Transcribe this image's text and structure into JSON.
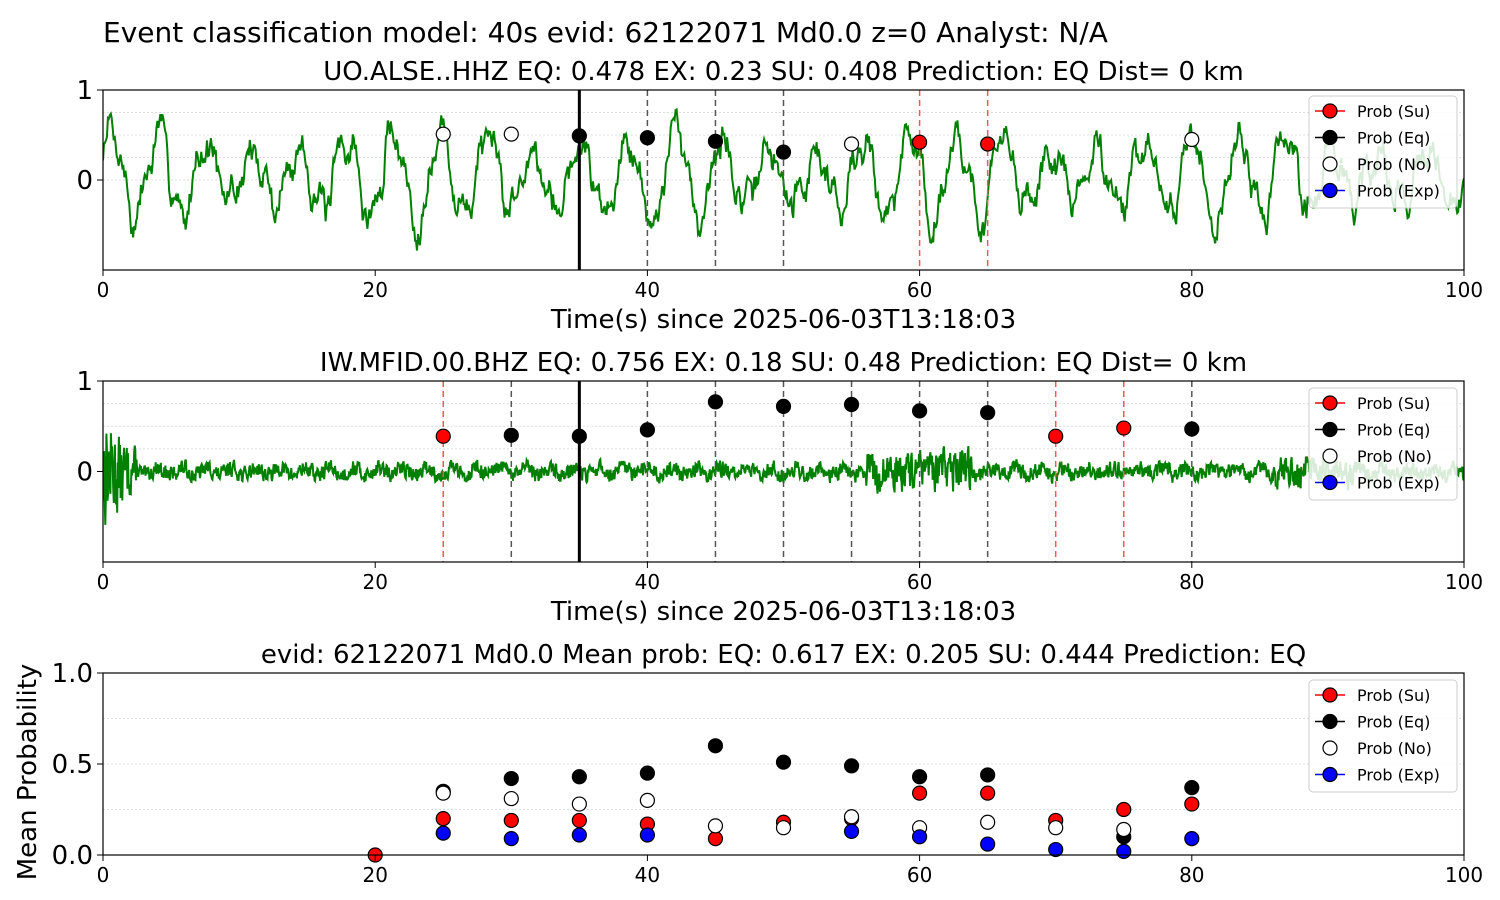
{
  "suptitle": "Event classification model: 40s evid: 62122071 Md0.0 z=0 Analyst: N/A",
  "colors": {
    "waveform": "#008000",
    "su": "#ff0000",
    "eq": "#000000",
    "no": "#ffffff",
    "exp": "#0000ff",
    "eq_window_line": "#555555",
    "su_window_line": "#ff5555",
    "grid": "#dddddd"
  },
  "legend": [
    "Prob (Su)",
    "Prob (Eq)",
    "Prob (No)",
    "Prob (Exp)"
  ],
  "chart_data": [
    {
      "type": "line",
      "title": "UO.ALSE..HHZ   EQ: 0.478  EX: 0.23  SU: 0.408   Prediction: EQ    Dist= 0 km",
      "xlabel": "Time(s) since 2025-06-03T13:18:03",
      "ylabel": "",
      "xlim": [
        0,
        100
      ],
      "ylim": [
        -1,
        1
      ],
      "xticks": [
        "0",
        "20",
        "40",
        "60",
        "80",
        "100"
      ],
      "yticks": [
        "0",
        "1"
      ],
      "waveform": {
        "kind": "long-period",
        "seed": 7
      },
      "origin_line": 35,
      "eq_window_lines": [
        40,
        45,
        50
      ],
      "su_window_lines": [
        60,
        65
      ],
      "series": [
        {
          "name": "Prob (Su)",
          "x": [
            60,
            65
          ],
          "y": [
            0.42,
            0.4
          ]
        },
        {
          "name": "Prob (Eq)",
          "x": [
            35,
            40,
            45,
            50
          ],
          "y": [
            0.49,
            0.47,
            0.43,
            0.31
          ]
        },
        {
          "name": "Prob (No)",
          "x": [
            25,
            30,
            55,
            80
          ],
          "y": [
            0.51,
            0.51,
            0.4,
            0.45
          ]
        },
        {
          "name": "Prob (Exp)",
          "x": [],
          "y": []
        }
      ]
    },
    {
      "type": "line",
      "title": "IW.MFID.00.BHZ   EQ: 0.756  EX: 0.18  SU: 0.48   Prediction: EQ    Dist= 0 km",
      "xlabel": "Time(s) since 2025-06-03T13:18:03",
      "ylabel": "",
      "xlim": [
        0,
        100
      ],
      "ylim": [
        -1,
        1
      ],
      "xticks": [
        "0",
        "20",
        "40",
        "60",
        "80",
        "100"
      ],
      "yticks": [
        "0",
        "1"
      ],
      "waveform": {
        "kind": "noisy",
        "seed": 13
      },
      "origin_line": 35,
      "eq_window_lines": [
        30,
        40,
        45,
        50,
        55,
        60,
        65,
        80
      ],
      "su_window_lines": [
        25,
        70,
        75
      ],
      "series": [
        {
          "name": "Prob (Su)",
          "x": [
            25,
            70,
            75
          ],
          "y": [
            0.39,
            0.39,
            0.48
          ]
        },
        {
          "name": "Prob (Eq)",
          "x": [
            30,
            35,
            40,
            45,
            50,
            55,
            60,
            65,
            80
          ],
          "y": [
            0.4,
            0.39,
            0.46,
            0.77,
            0.72,
            0.74,
            0.67,
            0.65,
            0.47
          ]
        },
        {
          "name": "Prob (No)",
          "x": [],
          "y": []
        },
        {
          "name": "Prob (Exp)",
          "x": [],
          "y": []
        }
      ]
    },
    {
      "type": "scatter",
      "title": "evid: 62122071  Md0.0   Mean prob:   EQ: 0.617  EX: 0.205  SU: 0.444   Prediction: EQ",
      "xlabel": "",
      "ylabel": "Mean Probability",
      "xlim": [
        0,
        100
      ],
      "ylim": [
        0,
        1
      ],
      "xticks": [
        "0",
        "20",
        "40",
        "60",
        "80",
        "100"
      ],
      "yticks": [
        "0.0",
        "0.5",
        "1.0"
      ],
      "grid": [
        0.25,
        0.5,
        0.75,
        1.0
      ],
      "series": [
        {
          "name": "Prob (Su)",
          "x": [
            20,
            25,
            30,
            35,
            40,
            45,
            50,
            55,
            60,
            65,
            70,
            75,
            80
          ],
          "y": [
            0.0,
            0.2,
            0.19,
            0.19,
            0.17,
            0.09,
            0.18,
            0.2,
            0.34,
            0.34,
            0.19,
            0.25,
            0.28
          ]
        },
        {
          "name": "Prob (Eq)",
          "x": [
            25,
            30,
            35,
            40,
            45,
            50,
            55,
            60,
            65,
            75,
            80
          ],
          "y": [
            0.35,
            0.42,
            0.43,
            0.45,
            0.6,
            0.51,
            0.49,
            0.43,
            0.44,
            0.1,
            0.37
          ]
        },
        {
          "name": "Prob (No)",
          "x": [
            25,
            30,
            35,
            40,
            45,
            50,
            55,
            60,
            65,
            70,
            75
          ],
          "y": [
            0.34,
            0.31,
            0.28,
            0.3,
            0.16,
            0.15,
            0.21,
            0.15,
            0.18,
            0.15,
            0.14
          ]
        },
        {
          "name": "Prob (Exp)",
          "x": [
            25,
            30,
            35,
            40,
            55,
            60,
            65,
            70,
            75,
            80
          ],
          "y": [
            0.12,
            0.09,
            0.11,
            0.11,
            0.13,
            0.1,
            0.06,
            0.03,
            0.02,
            0.09
          ]
        }
      ]
    }
  ]
}
